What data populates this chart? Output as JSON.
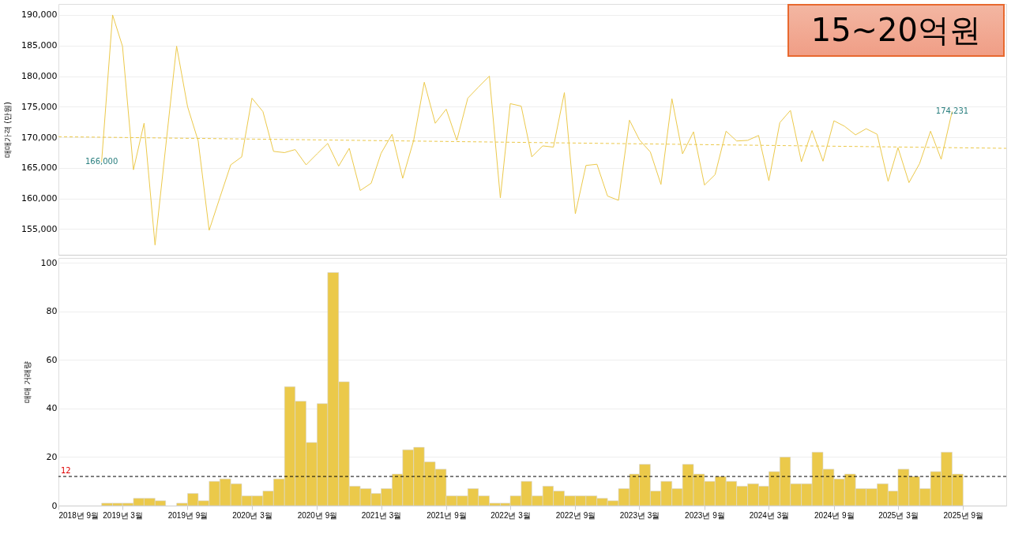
{
  "chart_data": [
    {
      "type": "line",
      "title": "15~20억원",
      "ylabel": "매매가격 (만원)",
      "xlim": [
        "2018-09",
        "2026-01"
      ],
      "ylim": [
        150800,
        191800
      ],
      "yticks": [
        {
          "value": 155000,
          "label": "155,000"
        },
        {
          "value": 160000,
          "label": "160,000"
        },
        {
          "value": 165000,
          "label": "165,000"
        },
        {
          "value": 170000,
          "label": "170,000"
        },
        {
          "value": 175000,
          "label": "175,000"
        },
        {
          "value": 180000,
          "label": "180,000"
        },
        {
          "value": 185000,
          "label": "185,000"
        },
        {
          "value": 190000,
          "label": "190,000"
        }
      ],
      "grid": "y",
      "tick_labels": "y",
      "marker": "none",
      "x": [
        "2019-01",
        "2019-02",
        "2019-03",
        "2019-04",
        "2019-05",
        "2019-06",
        "2019-07",
        "2019-08",
        "2019-09",
        "2019-10",
        "2019-11",
        "2019-12",
        "2020-01",
        "2020-02",
        "2020-03",
        "2020-04",
        "2020-05",
        "2020-06",
        "2020-07",
        "2020-08",
        "2020-09",
        "2020-10",
        "2020-11",
        "2020-12",
        "2021-01",
        "2021-02",
        "2021-03",
        "2021-04",
        "2021-05",
        "2021-06",
        "2021-07",
        "2021-08",
        "2021-09",
        "2021-10",
        "2021-11",
        "2021-12",
        "2022-01",
        "2022-02",
        "2022-03",
        "2022-04",
        "2022-05",
        "2022-06",
        "2022-07",
        "2022-08",
        "2022-09",
        "2022-10",
        "2022-11",
        "2022-12",
        "2023-01",
        "2023-02",
        "2023-03",
        "2023-04",
        "2023-05",
        "2023-06",
        "2023-07",
        "2023-08",
        "2023-09",
        "2023-10",
        "2023-11",
        "2023-12",
        "2024-01",
        "2024-02",
        "2024-03",
        "2024-04",
        "2024-05",
        "2024-06",
        "2024-07",
        "2024-08",
        "2024-09",
        "2024-10",
        "2024-11",
        "2024-12",
        "2025-01",
        "2025-02",
        "2025-03",
        "2025-04",
        "2025-05",
        "2025-06",
        "2025-07",
        "2025-08"
      ],
      "series": [
        {
          "color": "#ecc94b",
          "values": [
            166000,
            190000,
            184900,
            164700,
            172300,
            152400,
            null,
            184900,
            175000,
            169400,
            154800,
            160100,
            165500,
            166800,
            176400,
            174200,
            167700,
            167500,
            168000,
            165500,
            167300,
            169000,
            165300,
            168200,
            161300,
            162500,
            167400,
            170500,
            163300,
            169500,
            179000,
            172300,
            174600,
            169500,
            176400,
            178200,
            180000,
            160100,
            175500,
            175100,
            166800,
            168600,
            168400,
            177300,
            157500,
            165400,
            165600,
            160400,
            159700,
            172800,
            169600,
            167600,
            162300,
            176300,
            167300,
            170900,
            162200,
            163900,
            171000,
            169400,
            169500,
            170300,
            162900,
            172400,
            174400,
            166000,
            171100,
            166100,
            172700,
            171800,
            170400,
            171400,
            170500,
            162800,
            168300,
            162600,
            165700,
            171000,
            166400,
            174231
          ],
          "value_labels": [
            "166,000",
            null,
            null,
            null,
            null,
            null,
            null,
            null,
            null,
            null,
            null,
            null,
            null,
            null,
            null,
            null,
            null,
            null,
            null,
            null,
            null,
            null,
            null,
            null,
            null,
            null,
            null,
            null,
            null,
            null,
            null,
            null,
            null,
            null,
            null,
            null,
            null,
            null,
            null,
            null,
            null,
            null,
            null,
            null,
            null,
            null,
            null,
            null,
            null,
            null,
            null,
            null,
            null,
            null,
            null,
            null,
            null,
            null,
            null,
            null,
            null,
            null,
            null,
            null,
            null,
            null,
            null,
            null,
            null,
            null,
            null,
            null,
            null,
            null,
            null,
            null,
            null,
            null,
            null,
            "174,231"
          ]
        },
        {
          "type": "line",
          "x": [
            "2018-09",
            "2026-01"
          ],
          "values": [
            170100,
            168200
          ],
          "color": "#ecc94b",
          "line_style": "dashed"
        }
      ]
    },
    {
      "type": "bar",
      "ylabel": "매매 거래량",
      "xlim": [
        "2018-09",
        "2026-01"
      ],
      "ylim": [
        0,
        102
      ],
      "yticks": [
        0,
        20,
        40,
        60,
        80,
        100
      ],
      "grid": "y",
      "color": "#ebc94a",
      "xticks": [
        {
          "value": "2018-09",
          "label": "2018년 9월"
        },
        {
          "value": "2019-03",
          "label": "2019년 3월"
        },
        {
          "value": "2019-09",
          "label": "2019년 9월"
        },
        {
          "value": "2020-03",
          "label": "2020년 3월"
        },
        {
          "value": "2020-09",
          "label": "2020년 9월"
        },
        {
          "value": "2021-03",
          "label": "2021년 3월"
        },
        {
          "value": "2021-09",
          "label": "2021년 9월"
        },
        {
          "value": "2022-03",
          "label": "2022년 3월"
        },
        {
          "value": "2022-09",
          "label": "2022년 9월"
        },
        {
          "value": "2023-03",
          "label": "2023년 3월"
        },
        {
          "value": "2023-09",
          "label": "2023년 9월"
        },
        {
          "value": "2024-03",
          "label": "2024년 3월"
        },
        {
          "value": "2024-09",
          "label": "2024년 9월"
        },
        {
          "value": "2025-03",
          "label": "2025년 3월"
        },
        {
          "value": "2025-09",
          "label": "2025년 9월"
        }
      ],
      "x": [
        "2019-01-16",
        "2019-02-15",
        "2019-03-16",
        "2019-04-15",
        "2019-05-16",
        "2019-06-15",
        "2019-07-16",
        "2019-08-16",
        "2019-09-15",
        "2019-10-16",
        "2019-11-15",
        "2019-12-16",
        "2020-01-16",
        "2020-02-15",
        "2020-03-16",
        "2020-04-15",
        "2020-05-16",
        "2020-06-15",
        "2020-07-16",
        "2020-08-16",
        "2020-09-15",
        "2020-10-16",
        "2020-11-15",
        "2020-12-16",
        "2021-01-16",
        "2021-02-15",
        "2021-03-16",
        "2021-04-15",
        "2021-05-16",
        "2021-06-15",
        "2021-07-16",
        "2021-08-16",
        "2021-09-15",
        "2021-10-16",
        "2021-11-15",
        "2021-12-16",
        "2022-01-16",
        "2022-02-15",
        "2022-03-16",
        "2022-04-15",
        "2022-05-16",
        "2022-06-15",
        "2022-07-16",
        "2022-08-16",
        "2022-09-15",
        "2022-10-16",
        "2022-11-15",
        "2022-12-16",
        "2023-01-16",
        "2023-02-15",
        "2023-03-16",
        "2023-04-15",
        "2023-05-16",
        "2023-06-15",
        "2023-07-16",
        "2023-08-16",
        "2023-09-15",
        "2023-10-16",
        "2023-11-15",
        "2023-12-16",
        "2024-01-16",
        "2024-02-15",
        "2024-03-16",
        "2024-04-15",
        "2024-05-16",
        "2024-06-15",
        "2024-07-16",
        "2024-08-16",
        "2024-09-15",
        "2024-10-16",
        "2024-11-15",
        "2024-12-16",
        "2025-01-16",
        "2025-02-15",
        "2025-03-16",
        "2025-04-15",
        "2025-05-16",
        "2025-06-15",
        "2025-07-16",
        "2025-08-16"
      ],
      "values": [
        1,
        1,
        1,
        3,
        3,
        2,
        null,
        1,
        5,
        2,
        10,
        11,
        9,
        4,
        4,
        6,
        11,
        49,
        43,
        26,
        42,
        96,
        51,
        8,
        7,
        5,
        7,
        13,
        23,
        24,
        18,
        15,
        4,
        4,
        7,
        4,
        1,
        1,
        4,
        10,
        4,
        8,
        6,
        4,
        4,
        4,
        3,
        2,
        7,
        13,
        17,
        6,
        10,
        7,
        17,
        13,
        10,
        12,
        10,
        8,
        9,
        8,
        14,
        20,
        9,
        9,
        22,
        15,
        11,
        13,
        7,
        7,
        9,
        6,
        15,
        12,
        7,
        14,
        22,
        13
      ],
      "ref_lines": [
        {
          "axis": "y",
          "value": 12,
          "label": "12",
          "color": "#000000",
          "line_style": "dashed"
        }
      ]
    }
  ]
}
